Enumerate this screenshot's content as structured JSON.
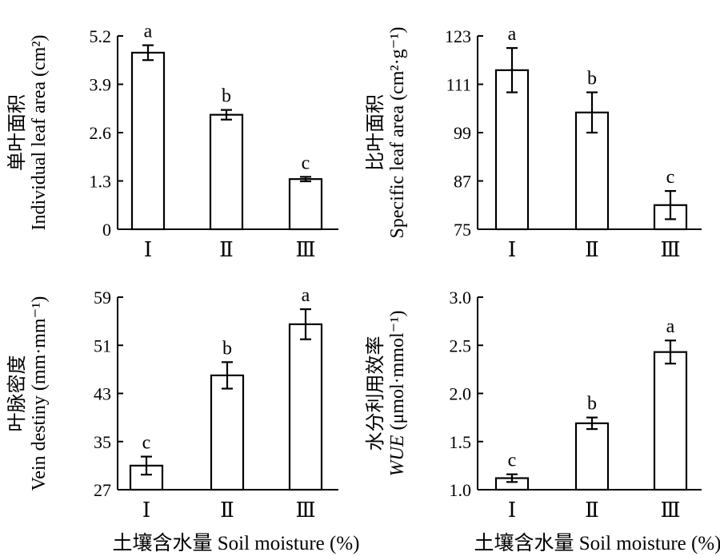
{
  "chart_data": [
    {
      "type": "bar",
      "categories": [
        "Ⅰ",
        "Ⅱ",
        "Ⅲ"
      ],
      "values": [
        4.75,
        3.08,
        1.35
      ],
      "errors": [
        0.2,
        0.13,
        0.06
      ],
      "significance": [
        "a",
        "b",
        "c"
      ],
      "ylabel_cn": "单叶面积",
      "ylabel_en": "Individual leaf area (cm²)",
      "yticks": [
        "0",
        "1.3",
        "2.6",
        "3.9",
        "5.2"
      ],
      "ylim": [
        0,
        5.2
      ],
      "xlabel": ""
    },
    {
      "type": "bar",
      "categories": [
        "Ⅰ",
        "Ⅱ",
        "Ⅲ"
      ],
      "values": [
        114.5,
        104,
        81
      ],
      "errors": [
        5.5,
        5,
        3.5
      ],
      "significance": [
        "a",
        "b",
        "c"
      ],
      "ylabel_cn": "比叶面积",
      "ylabel_en": "Specific leaf area (cm²·g⁻¹)",
      "yticks": [
        "75",
        "87",
        "99",
        "111",
        "123"
      ],
      "ylim": [
        75,
        123
      ],
      "xlabel": ""
    },
    {
      "type": "bar",
      "categories": [
        "Ⅰ",
        "Ⅱ",
        "Ⅲ"
      ],
      "values": [
        31,
        46,
        54.5
      ],
      "errors": [
        1.5,
        2.2,
        2.5
      ],
      "significance": [
        "c",
        "b",
        "a"
      ],
      "ylabel_cn": "叶脉密度",
      "ylabel_en": "Vein destiny (mm·mm⁻¹)",
      "yticks": [
        "27",
        "35",
        "43",
        "51",
        "59"
      ],
      "ylim": [
        27,
        59
      ],
      "xlabel": "土壤含水量 Soil moisture (%)"
    },
    {
      "type": "bar",
      "categories": [
        "Ⅰ",
        "Ⅱ",
        "Ⅲ"
      ],
      "values": [
        1.12,
        1.69,
        2.43
      ],
      "errors": [
        0.04,
        0.06,
        0.12
      ],
      "significance": [
        "c",
        "b",
        "a"
      ],
      "ylabel_cn": "水分利用效率",
      "ylabel_en_italic": "WUE",
      "ylabel_en": " (μmol·mmol⁻¹)",
      "yticks": [
        "1.0",
        "1.5",
        "2.0",
        "2.5",
        "3.0"
      ],
      "ylim": [
        1.0,
        3.0
      ],
      "xlabel": "土壤含水量 Soil moisture (%)"
    }
  ]
}
